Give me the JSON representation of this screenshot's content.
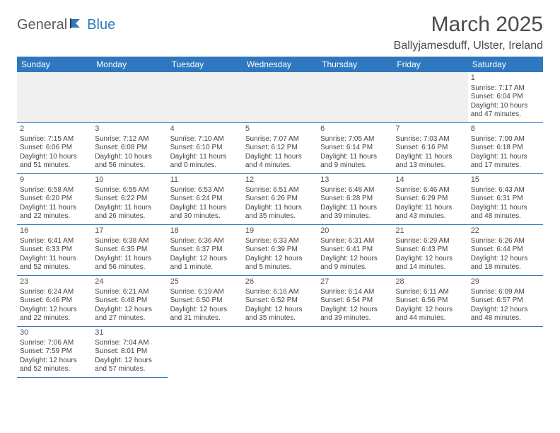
{
  "logo": {
    "text_dark": "General",
    "text_blue": "Blue"
  },
  "title": "March 2025",
  "location": "Ballyjamesduff, Ulster, Ireland",
  "colors": {
    "header_bg": "#2f78bf",
    "header_text": "#ffffff",
    "grid_line": "#2f78bf",
    "blank_bg": "#f0f0f0",
    "body_text": "#444444",
    "title_text": "#4a4a4a"
  },
  "day_headers": [
    "Sunday",
    "Monday",
    "Tuesday",
    "Wednesday",
    "Thursday",
    "Friday",
    "Saturday"
  ],
  "weeks": [
    [
      null,
      null,
      null,
      null,
      null,
      null,
      {
        "n": "1",
        "sr": "Sunrise: 7:17 AM",
        "ss": "Sunset: 6:04 PM",
        "dl": "Daylight: 10 hours and 47 minutes."
      }
    ],
    [
      {
        "n": "2",
        "sr": "Sunrise: 7:15 AM",
        "ss": "Sunset: 6:06 PM",
        "dl": "Daylight: 10 hours and 51 minutes."
      },
      {
        "n": "3",
        "sr": "Sunrise: 7:12 AM",
        "ss": "Sunset: 6:08 PM",
        "dl": "Daylight: 10 hours and 56 minutes."
      },
      {
        "n": "4",
        "sr": "Sunrise: 7:10 AM",
        "ss": "Sunset: 6:10 PM",
        "dl": "Daylight: 11 hours and 0 minutes."
      },
      {
        "n": "5",
        "sr": "Sunrise: 7:07 AM",
        "ss": "Sunset: 6:12 PM",
        "dl": "Daylight: 11 hours and 4 minutes."
      },
      {
        "n": "6",
        "sr": "Sunrise: 7:05 AM",
        "ss": "Sunset: 6:14 PM",
        "dl": "Daylight: 11 hours and 9 minutes."
      },
      {
        "n": "7",
        "sr": "Sunrise: 7:03 AM",
        "ss": "Sunset: 6:16 PM",
        "dl": "Daylight: 11 hours and 13 minutes."
      },
      {
        "n": "8",
        "sr": "Sunrise: 7:00 AM",
        "ss": "Sunset: 6:18 PM",
        "dl": "Daylight: 11 hours and 17 minutes."
      }
    ],
    [
      {
        "n": "9",
        "sr": "Sunrise: 6:58 AM",
        "ss": "Sunset: 6:20 PM",
        "dl": "Daylight: 11 hours and 22 minutes."
      },
      {
        "n": "10",
        "sr": "Sunrise: 6:55 AM",
        "ss": "Sunset: 6:22 PM",
        "dl": "Daylight: 11 hours and 26 minutes."
      },
      {
        "n": "11",
        "sr": "Sunrise: 6:53 AM",
        "ss": "Sunset: 6:24 PM",
        "dl": "Daylight: 11 hours and 30 minutes."
      },
      {
        "n": "12",
        "sr": "Sunrise: 6:51 AM",
        "ss": "Sunset: 6:26 PM",
        "dl": "Daylight: 11 hours and 35 minutes."
      },
      {
        "n": "13",
        "sr": "Sunrise: 6:48 AM",
        "ss": "Sunset: 6:28 PM",
        "dl": "Daylight: 11 hours and 39 minutes."
      },
      {
        "n": "14",
        "sr": "Sunrise: 6:46 AM",
        "ss": "Sunset: 6:29 PM",
        "dl": "Daylight: 11 hours and 43 minutes."
      },
      {
        "n": "15",
        "sr": "Sunrise: 6:43 AM",
        "ss": "Sunset: 6:31 PM",
        "dl": "Daylight: 11 hours and 48 minutes."
      }
    ],
    [
      {
        "n": "16",
        "sr": "Sunrise: 6:41 AM",
        "ss": "Sunset: 6:33 PM",
        "dl": "Daylight: 11 hours and 52 minutes."
      },
      {
        "n": "17",
        "sr": "Sunrise: 6:38 AM",
        "ss": "Sunset: 6:35 PM",
        "dl": "Daylight: 11 hours and 56 minutes."
      },
      {
        "n": "18",
        "sr": "Sunrise: 6:36 AM",
        "ss": "Sunset: 6:37 PM",
        "dl": "Daylight: 12 hours and 1 minute."
      },
      {
        "n": "19",
        "sr": "Sunrise: 6:33 AM",
        "ss": "Sunset: 6:39 PM",
        "dl": "Daylight: 12 hours and 5 minutes."
      },
      {
        "n": "20",
        "sr": "Sunrise: 6:31 AM",
        "ss": "Sunset: 6:41 PM",
        "dl": "Daylight: 12 hours and 9 minutes."
      },
      {
        "n": "21",
        "sr": "Sunrise: 6:29 AM",
        "ss": "Sunset: 6:43 PM",
        "dl": "Daylight: 12 hours and 14 minutes."
      },
      {
        "n": "22",
        "sr": "Sunrise: 6:26 AM",
        "ss": "Sunset: 6:44 PM",
        "dl": "Daylight: 12 hours and 18 minutes."
      }
    ],
    [
      {
        "n": "23",
        "sr": "Sunrise: 6:24 AM",
        "ss": "Sunset: 6:46 PM",
        "dl": "Daylight: 12 hours and 22 minutes."
      },
      {
        "n": "24",
        "sr": "Sunrise: 6:21 AM",
        "ss": "Sunset: 6:48 PM",
        "dl": "Daylight: 12 hours and 27 minutes."
      },
      {
        "n": "25",
        "sr": "Sunrise: 6:19 AM",
        "ss": "Sunset: 6:50 PM",
        "dl": "Daylight: 12 hours and 31 minutes."
      },
      {
        "n": "26",
        "sr": "Sunrise: 6:16 AM",
        "ss": "Sunset: 6:52 PM",
        "dl": "Daylight: 12 hours and 35 minutes."
      },
      {
        "n": "27",
        "sr": "Sunrise: 6:14 AM",
        "ss": "Sunset: 6:54 PM",
        "dl": "Daylight: 12 hours and 39 minutes."
      },
      {
        "n": "28",
        "sr": "Sunrise: 6:11 AM",
        "ss": "Sunset: 6:56 PM",
        "dl": "Daylight: 12 hours and 44 minutes."
      },
      {
        "n": "29",
        "sr": "Sunrise: 6:09 AM",
        "ss": "Sunset: 6:57 PM",
        "dl": "Daylight: 12 hours and 48 minutes."
      }
    ],
    [
      {
        "n": "30",
        "sr": "Sunrise: 7:06 AM",
        "ss": "Sunset: 7:59 PM",
        "dl": "Daylight: 12 hours and 52 minutes."
      },
      {
        "n": "31",
        "sr": "Sunrise: 7:04 AM",
        "ss": "Sunset: 8:01 PM",
        "dl": "Daylight: 12 hours and 57 minutes."
      },
      null,
      null,
      null,
      null,
      null
    ]
  ]
}
